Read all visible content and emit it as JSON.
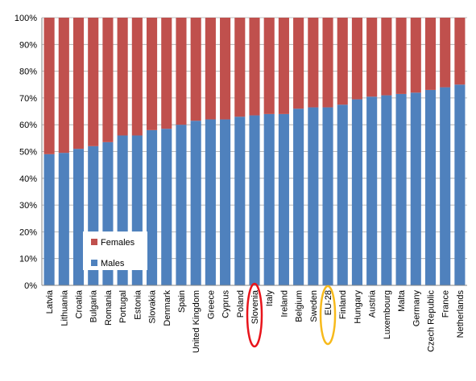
{
  "chart_data": {
    "type": "bar",
    "stacked": true,
    "percent": true,
    "categories": [
      "Latvia",
      "Lithuania",
      "Croatia",
      "Bulgaria",
      "Romania",
      "Portugal",
      "Estonia",
      "Slovakia",
      "Denmark",
      "Spain",
      "United Kingdom",
      "Greece",
      "Cyprus",
      "Poland",
      "Slovenia",
      "Italy",
      "Ireland",
      "Belgium",
      "Sweden",
      "EU-28",
      "Finland",
      "Hungary",
      "Austria",
      "Luxembourg",
      "Malta",
      "Germany",
      "Czech Republic",
      "France",
      "Netherlands"
    ],
    "series": [
      {
        "name": "Males",
        "color": "#4F81BD",
        "values": [
          49,
          49.5,
          51,
          52,
          53.5,
          56,
          56,
          58,
          58.5,
          60,
          61.5,
          62,
          62,
          63,
          63.5,
          64,
          64,
          66,
          66.5,
          66.5,
          67.5,
          69.5,
          70.5,
          71,
          71.5,
          72,
          73,
          74,
          75
        ]
      },
      {
        "name": "Females",
        "color": "#C0504D",
        "values": [
          51,
          50.5,
          49,
          48,
          46.5,
          44,
          44,
          42,
          41.5,
          40,
          38.5,
          38,
          38,
          37,
          36.5,
          36,
          36,
          34,
          33.5,
          33.5,
          32.5,
          30.5,
          29.5,
          29,
          28.5,
          28,
          27,
          26,
          25
        ]
      }
    ],
    "y_ticks": [
      "0%",
      "10%",
      "20%",
      "30%",
      "40%",
      "50%",
      "60%",
      "70%",
      "80%",
      "90%",
      "100%"
    ],
    "ylim": [
      0,
      100
    ],
    "grid": true,
    "legend": {
      "position": "bottom-left",
      "order": [
        "Females",
        "Males"
      ]
    },
    "highlights": [
      {
        "category": "Slovenia",
        "color": "#E8141B",
        "shape": "ellipse"
      },
      {
        "category": "EU-28",
        "color": "#F7BA1C",
        "shape": "ellipse"
      }
    ],
    "title": "",
    "xlabel": "",
    "ylabel": ""
  }
}
